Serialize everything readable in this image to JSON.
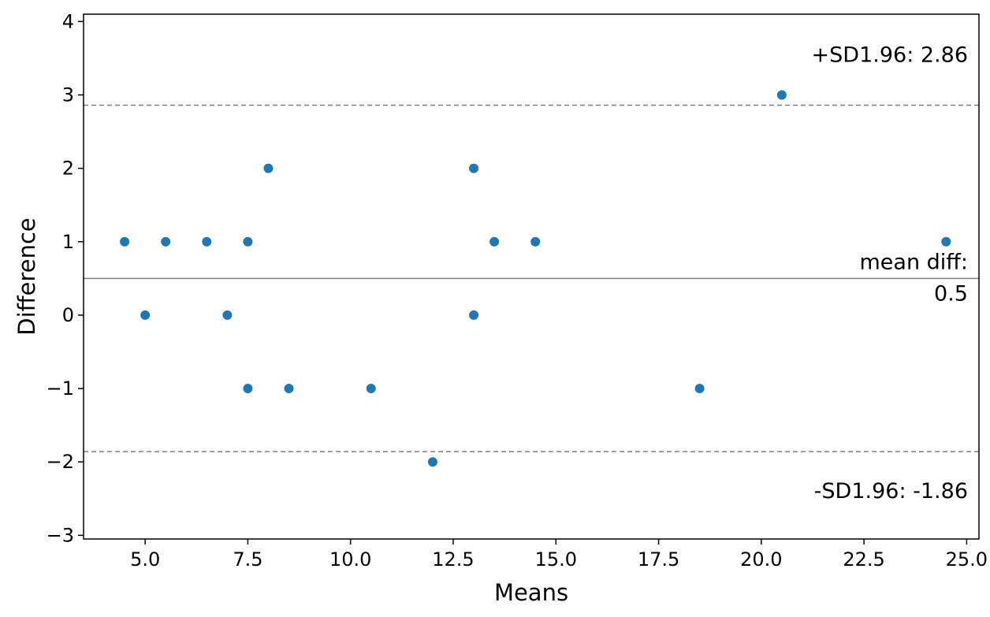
{
  "chart_data": {
    "type": "scatter",
    "title": "",
    "xlabel": "Means",
    "ylabel": "Difference",
    "xlim": [
      3.5,
      25.3
    ],
    "ylim": [
      -3.05,
      4.1
    ],
    "xticks": [
      5.0,
      7.5,
      10.0,
      12.5,
      15.0,
      17.5,
      20.0,
      22.5,
      25.0
    ],
    "xtick_labels": [
      "5.0",
      "7.5",
      "10.0",
      "12.5",
      "15.0",
      "17.5",
      "20.0",
      "22.5",
      "25.0"
    ],
    "yticks": [
      -3,
      -2,
      -1,
      0,
      1,
      2,
      3,
      4
    ],
    "ytick_labels": [
      "−3",
      "−2",
      "−1",
      "0",
      "1",
      "2",
      "3",
      "4"
    ],
    "grid": false,
    "point_color": "#1f77b4",
    "points": [
      {
        "x": 4.5,
        "y": 1
      },
      {
        "x": 5.0,
        "y": 0
      },
      {
        "x": 5.5,
        "y": 1
      },
      {
        "x": 6.5,
        "y": 1
      },
      {
        "x": 7.0,
        "y": 0
      },
      {
        "x": 7.5,
        "y": 1
      },
      {
        "x": 7.5,
        "y": -1
      },
      {
        "x": 8.0,
        "y": 2
      },
      {
        "x": 8.5,
        "y": -1
      },
      {
        "x": 10.5,
        "y": -1
      },
      {
        "x": 12.0,
        "y": -2
      },
      {
        "x": 13.0,
        "y": 2
      },
      {
        "x": 13.0,
        "y": 0
      },
      {
        "x": 13.5,
        "y": 1
      },
      {
        "x": 14.5,
        "y": 1
      },
      {
        "x": 18.5,
        "y": -1
      },
      {
        "x": 20.5,
        "y": 3
      },
      {
        "x": 24.5,
        "y": 1
      }
    ],
    "mean_diff": 0.5,
    "upper_loa": 2.86,
    "lower_loa": -1.86,
    "annotations": {
      "upper": "+SD1.96: 2.86",
      "mean_line1": "mean diff:",
      "mean_line2": "0.5",
      "lower": "-SD1.96: -1.86"
    }
  }
}
